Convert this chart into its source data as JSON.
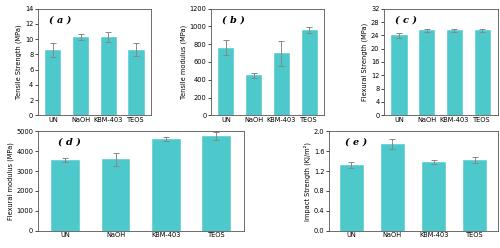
{
  "categories": [
    "UN",
    "NaOH",
    "KBM-403",
    "TEOS"
  ],
  "bar_color": "#4DC8CB",
  "bar_edgecolor": "#4DC8CB",
  "error_color": "#888888",
  "plots": [
    {
      "label": "( a )",
      "ylabel": "Tensile Strength (MPa)",
      "ylim": [
        0,
        14
      ],
      "yticks": [
        0,
        2,
        4,
        6,
        8,
        10,
        12,
        14
      ],
      "values": [
        8.6,
        10.3,
        10.3,
        8.6
      ],
      "errors": [
        0.9,
        0.35,
        0.65,
        0.85
      ]
    },
    {
      "label": "( b )",
      "ylabel": "Tensile modulus (MPa)",
      "ylim": [
        0,
        1200
      ],
      "yticks": [
        0,
        200,
        400,
        600,
        800,
        1000,
        1200
      ],
      "values": [
        760,
        450,
        700,
        960
      ],
      "errors": [
        85,
        30,
        140,
        35
      ]
    },
    {
      "label": "( c )",
      "ylabel": "Flexural Strength (MPa)",
      "ylim": [
        0,
        32
      ],
      "yticks": [
        0,
        4,
        8,
        12,
        16,
        20,
        24,
        28,
        32
      ],
      "values": [
        24.0,
        25.5,
        25.5,
        25.5
      ],
      "errors": [
        0.7,
        0.45,
        0.55,
        0.45
      ]
    },
    {
      "label": "( d )",
      "ylabel": "Flexural modulus (MPa)",
      "ylim": [
        0,
        5000
      ],
      "yticks": [
        0,
        1000,
        2000,
        3000,
        4000,
        5000
      ],
      "values": [
        3550,
        3600,
        4620,
        4780
      ],
      "errors": [
        110,
        320,
        95,
        210
      ]
    },
    {
      "label": "( e )",
      "ylabel": "Impact Strength (KJ/m²)",
      "ylim": [
        0.0,
        2.0
      ],
      "yticks": [
        0.0,
        0.4,
        0.8,
        1.2,
        1.6,
        2.0
      ],
      "values": [
        1.32,
        1.75,
        1.38,
        1.42
      ],
      "errors": [
        0.055,
        0.1,
        0.045,
        0.055
      ]
    }
  ]
}
